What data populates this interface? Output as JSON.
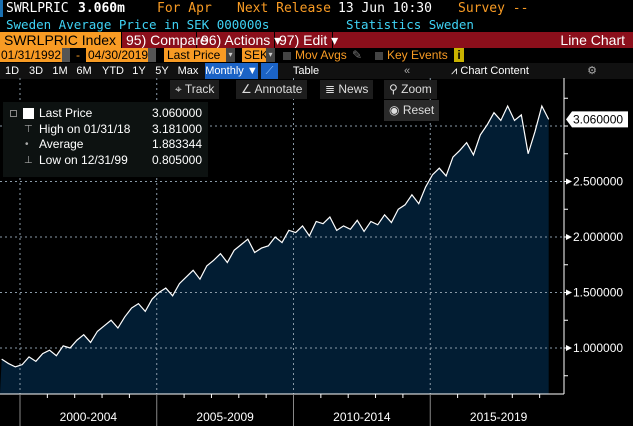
{
  "header": {
    "ticker": "SWRLPRIC",
    "price": "3.060m",
    "period": "For Apr",
    "next_release_label": "Next Release",
    "next_release": "13 Jun 10:30",
    "survey": "Survey --",
    "description": "Sweden Average Price in SEK 000000s",
    "source": "Statistics Sweden"
  },
  "toolbar": {
    "security": "SWRLPRIC Index",
    "compare": "95) Compare",
    "actions": "96) Actions ▾",
    "edit": "97) Edit ▾",
    "chart_type": "Line Chart"
  },
  "range": {
    "start": "01/31/1992",
    "end": "04/30/2019",
    "dash": "-",
    "field": "Last Price",
    "currency": "SEK",
    "mov_avgs": "Mov Avgs",
    "key_events": "Key Events"
  },
  "periods": [
    "1D",
    "3D",
    "1M",
    "6M",
    "YTD",
    "1Y",
    "5Y",
    "Max"
  ],
  "frequency": "Monthly ▼",
  "table_label": "Table",
  "chart_content": "Chart Content",
  "chart_tools": {
    "track": "Track",
    "annotate": "Annotate",
    "news": "News",
    "zoom": "Zoom",
    "reset": "Reset"
  },
  "legend": [
    {
      "label": "Last Price",
      "value": "3.060000"
    },
    {
      "label": "High on 01/31/18",
      "value": "3.181000"
    },
    {
      "label": "Average",
      "value": "1.883344"
    },
    {
      "label": "Low on 12/31/99",
      "value": "0.805000"
    }
  ],
  "colors": {
    "accent": "#f89b24",
    "bar": "#8b0f1b",
    "fill": "#021d33",
    "cyan": "#3fd3f5"
  },
  "chart_data": {
    "type": "area",
    "series_name": "Last Price",
    "x_start": 1999.33,
    "x_step": 0.25,
    "values": [
      0.9,
      0.86,
      0.83,
      0.85,
      0.92,
      0.88,
      0.95,
      0.98,
      0.93,
      1.02,
      1.0,
      1.07,
      1.12,
      1.05,
      1.15,
      1.2,
      1.25,
      1.18,
      1.28,
      1.36,
      1.4,
      1.33,
      1.44,
      1.5,
      1.54,
      1.47,
      1.58,
      1.64,
      1.7,
      1.62,
      1.74,
      1.79,
      1.85,
      1.77,
      1.88,
      1.93,
      1.98,
      1.86,
      1.9,
      1.92,
      2.0,
      1.95,
      2.06,
      2.04,
      2.1,
      2.01,
      2.14,
      2.12,
      2.18,
      2.06,
      2.1,
      2.07,
      2.15,
      2.05,
      2.14,
      2.11,
      2.2,
      2.13,
      2.25,
      2.29,
      2.38,
      2.3,
      2.45,
      2.56,
      2.62,
      2.55,
      2.72,
      2.78,
      2.85,
      2.74,
      2.92,
      3.01,
      3.12,
      3.05,
      3.18,
      3.05,
      3.1,
      2.75,
      2.95,
      3.18,
      3.06
    ],
    "xlim": [
      1999.27,
      2019.95
    ],
    "ylim": [
      0.7,
      3.3
    ],
    "y_ticks": [
      "1.000000",
      "1.500000",
      "2.000000",
      "2.500000"
    ],
    "y_tick_values": [
      1.0,
      1.5,
      2.0,
      2.5
    ],
    "last_label": "3.060000",
    "last_value": 3.06,
    "x_labels": [
      "2000-2004",
      "2005-2009",
      "2010-2014",
      "2015-2019"
    ],
    "x_label_starts": [
      2000,
      2005,
      2010,
      2015
    ],
    "grid": true
  }
}
